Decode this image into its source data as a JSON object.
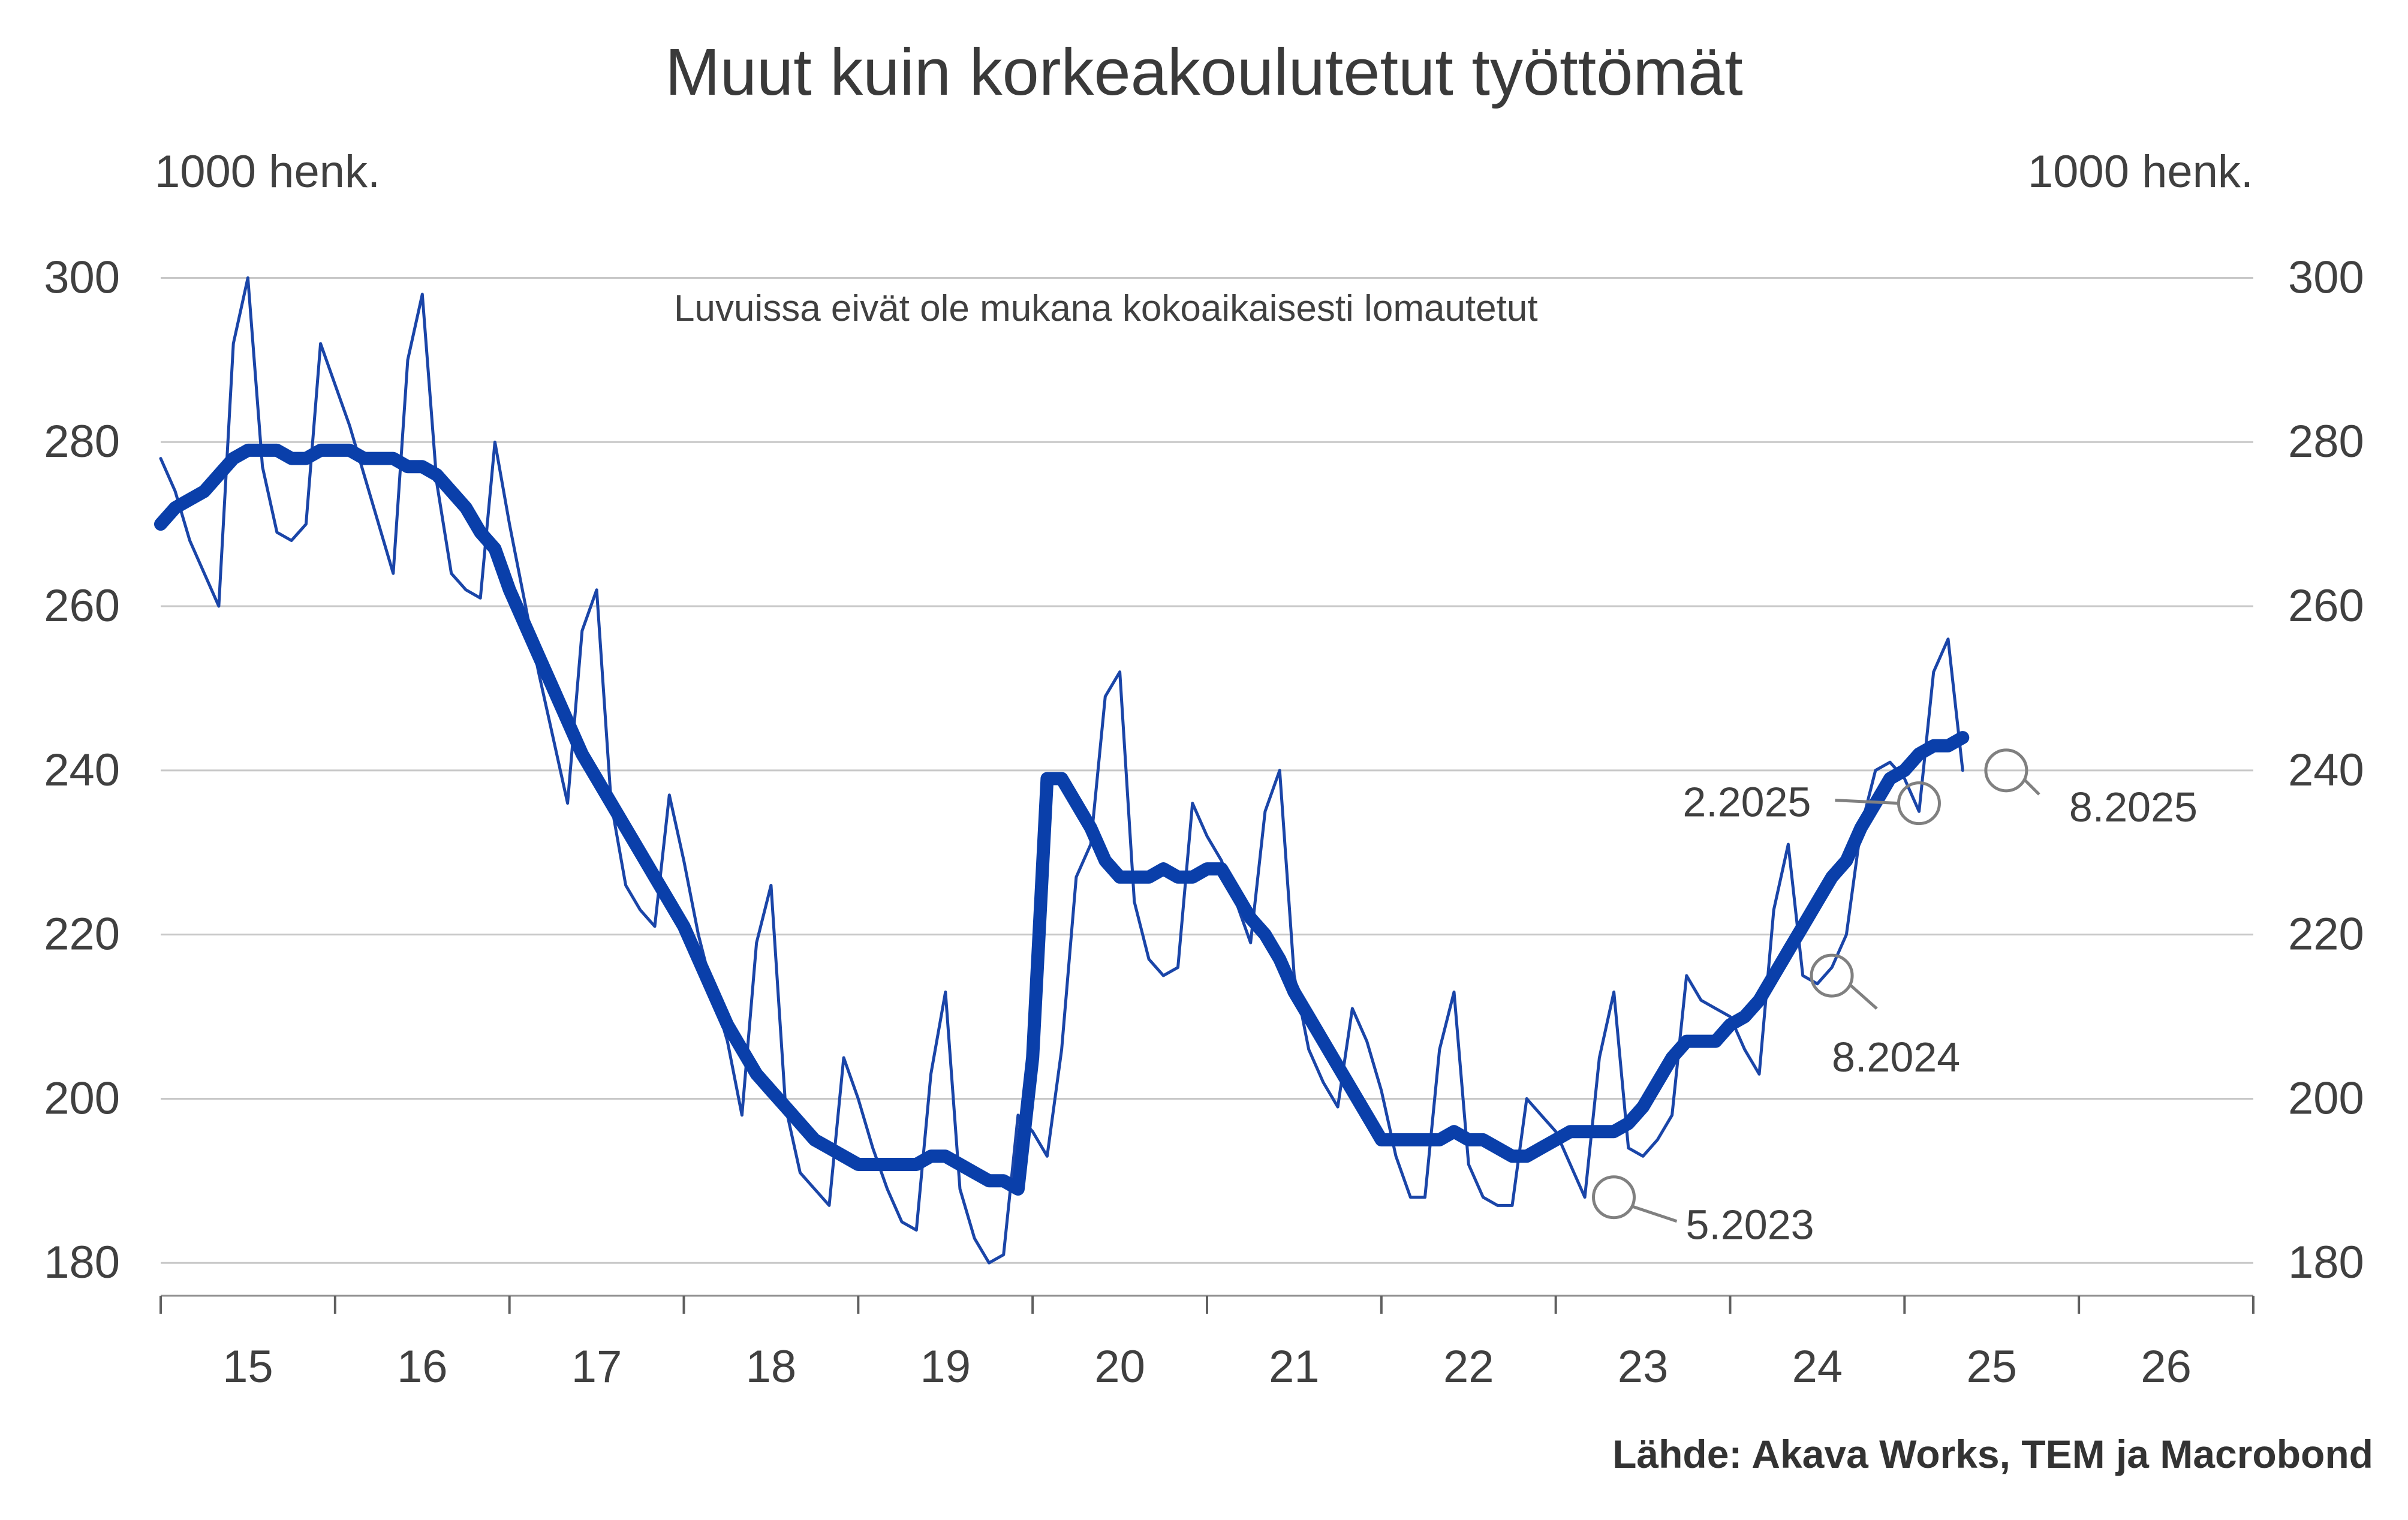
{
  "chart_data": {
    "type": "line",
    "title": "Muut kuin korkeakoulutetut työttömät",
    "ylabel_left": "1000 henk.",
    "ylabel_right": "1000 henk.",
    "note": "Luvuissa eivät ole mukana kokoaikaisesti lomautetut",
    "source": "Lähde: Akava Works, TEM ja Macrobond",
    "ylim": [
      176,
      305
    ],
    "y_ticks": [
      180,
      200,
      220,
      240,
      260,
      280,
      300
    ],
    "xlim": [
      2015.0,
      2027.0
    ],
    "x_tick_labels": [
      "15",
      "16",
      "17",
      "18",
      "19",
      "20",
      "21",
      "22",
      "23",
      "24",
      "25",
      "26"
    ],
    "colors": {
      "monthly": "#1a45a8",
      "trend": "#0a3faa",
      "grid": "#c8c8c8",
      "annotation": "#808080"
    },
    "series": [
      {
        "id": "monthly",
        "start": [
          2015,
          1
        ],
        "values": [
          278,
          274,
          268,
          264,
          260,
          292,
          300,
          277,
          269,
          268,
          270,
          292,
          287,
          282,
          276,
          270,
          264,
          290,
          298,
          275,
          264,
          262,
          261,
          280,
          270,
          261,
          252,
          244,
          236,
          257,
          262,
          236,
          226,
          223,
          221,
          237,
          229,
          220,
          213,
          207,
          198,
          219,
          226,
          199,
          191,
          189,
          187,
          205,
          200,
          194,
          189,
          185,
          184,
          203,
          213,
          189,
          183,
          180,
          181,
          198,
          196,
          193,
          206,
          227,
          231,
          249,
          252,
          224,
          217,
          215,
          216,
          236,
          232,
          229,
          224,
          219,
          235,
          240,
          215,
          206,
          202,
          199,
          211,
          207,
          201,
          193,
          188,
          188,
          206,
          213,
          192,
          188,
          187,
          187,
          200,
          198,
          196,
          192,
          188,
          205,
          213,
          194,
          193,
          195,
          198,
          215,
          212,
          211,
          210,
          206,
          203,
          223,
          231,
          215,
          214,
          216,
          220,
          233,
          240,
          241,
          239,
          235,
          252,
          256,
          240
        ]
      },
      {
        "id": "trend",
        "start": [
          2015,
          1
        ],
        "values": [
          270,
          272,
          273,
          274,
          276,
          278,
          279,
          279,
          279,
          278,
          278,
          279,
          279,
          279,
          278,
          278,
          278,
          277,
          277,
          276,
          274,
          272,
          269,
          267,
          262,
          258,
          254,
          250,
          246,
          242,
          239,
          236,
          233,
          230,
          227,
          224,
          221,
          217,
          213,
          209,
          206,
          203,
          201,
          199,
          197,
          195,
          194,
          193,
          192,
          192,
          192,
          192,
          192,
          193,
          193,
          192,
          191,
          190,
          190,
          189,
          205,
          239,
          239,
          236,
          233,
          229,
          227,
          227,
          227,
          228,
          227,
          227,
          228,
          228,
          225,
          222,
          220,
          217,
          213,
          210,
          207,
          204,
          201,
          198,
          195,
          195,
          195,
          195,
          195,
          196,
          195,
          195,
          194,
          193,
          193,
          194,
          195,
          196,
          196,
          196,
          196,
          197,
          199,
          202,
          205,
          207,
          207,
          207,
          209,
          210,
          212,
          215,
          218,
          221,
          224,
          227,
          229,
          233,
          236,
          239,
          240,
          242,
          243,
          243,
          244
        ]
      }
    ],
    "annotations": [
      {
        "label": "5.2023",
        "x": 2023.333,
        "y": 188
      },
      {
        "label": "8.2024",
        "x": 2024.583,
        "y": 215
      },
      {
        "label": "2.2025",
        "x": 2025.083,
        "y": 236
      },
      {
        "label": "8.2025",
        "x": 2025.583,
        "y": 240
      }
    ]
  }
}
